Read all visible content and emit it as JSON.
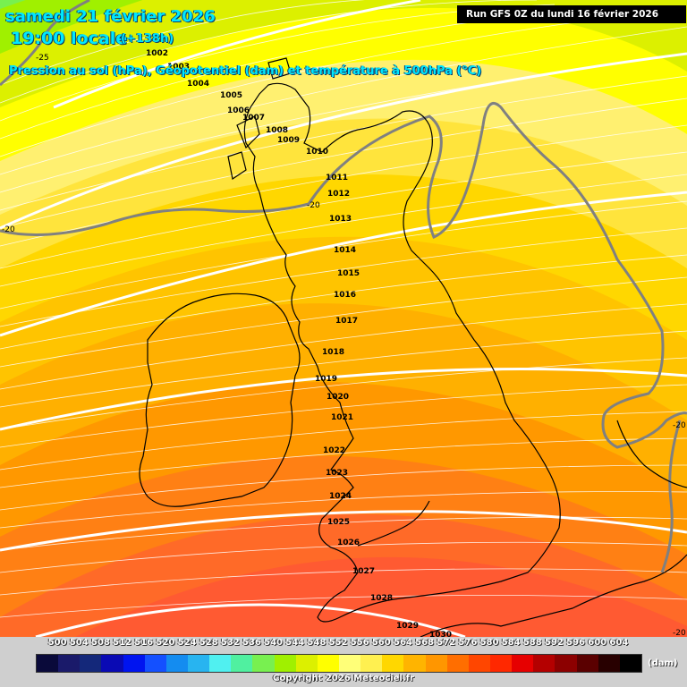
{
  "header": {
    "date": "samedi 21 février 2026",
    "time": "19:00 locale",
    "offset": "(+138h)",
    "description": "Pression au sol (hPa), Géopotentiel (dam) et température à 500hPa (°C)",
    "run": "Run GFS 0Z du lundi 16 février 2026"
  },
  "map": {
    "region": "British Isles",
    "isobars": [
      "1002",
      "1003",
      "1004",
      "1005",
      "1006",
      "1007",
      "1008",
      "1009",
      "1010",
      "1011",
      "1012",
      "1013",
      "1014",
      "1015",
      "1016",
      "1017",
      "1018",
      "1019",
      "1020",
      "1021",
      "1022",
      "1023",
      "1024",
      "1025",
      "1026",
      "1027",
      "1028",
      "1029",
      "1030"
    ],
    "temperature_labels": [
      "-25",
      "-20",
      "-20",
      "-20",
      "-20"
    ],
    "colors": {
      "coast": "#000000",
      "isotherm": "#808080",
      "isohypse": "#ffffff"
    }
  },
  "legend": {
    "values": [
      "500",
      "504",
      "508",
      "512",
      "516",
      "520",
      "524",
      "528",
      "532",
      "536",
      "540",
      "544",
      "548",
      "552",
      "556",
      "560",
      "564",
      "568",
      "572",
      "576",
      "580",
      "584",
      "588",
      "592",
      "596",
      "600",
      "604"
    ],
    "colors": [
      "#0a0a3a",
      "#1a1a6a",
      "#14287a",
      "#0a0ab4",
      "#0014f0",
      "#1450ff",
      "#148cf0",
      "#28b4f0",
      "#50f0f0",
      "#50f0a0",
      "#78f050",
      "#a0f000",
      "#dcf000",
      "#ffff00",
      "#ffff78",
      "#fff050",
      "#ffd700",
      "#ffb400",
      "#ff9600",
      "#ff6e00",
      "#ff4600",
      "#ff2800",
      "#e60000",
      "#b40000",
      "#8c0000",
      "#5a0000",
      "#280000",
      "#000000"
    ],
    "unit": "(dam)"
  },
  "footer": {
    "copyright": "Copyright 2026 Meteociel.fr"
  }
}
